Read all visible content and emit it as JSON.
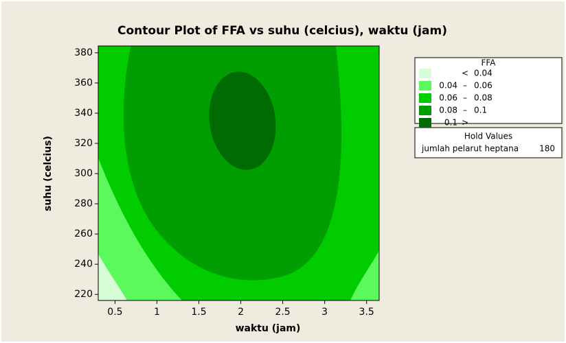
{
  "chart_data": {
    "type": "contour",
    "title": "Contour Plot of FFA vs suhu (celcius), waktu (jam)",
    "x_label": "waktu (jam)",
    "y_label": "suhu (celcius)",
    "xlim": [
      0.3,
      3.65
    ],
    "xticks": [
      0.5,
      1.0,
      1.5,
      2.0,
      2.5,
      3.0,
      3.5
    ],
    "ylim": [
      216,
      384.5
    ],
    "yticks": [
      220,
      240,
      260,
      280,
      300,
      320,
      340,
      360,
      380
    ],
    "legend_title": "FFA",
    "levels": [
      0.04,
      0.06,
      0.08,
      0.1
    ],
    "legend_symbols": [
      "<",
      "–",
      "–",
      "–",
      ">"
    ],
    "colors": [
      "#d6fdd6",
      "#5cf95c",
      "#00cc00",
      "#009e00",
      "#006b00"
    ],
    "hold_title": "Hold Values",
    "hold_name": "jumlah pelarut heptana",
    "hold_value": 180
  }
}
